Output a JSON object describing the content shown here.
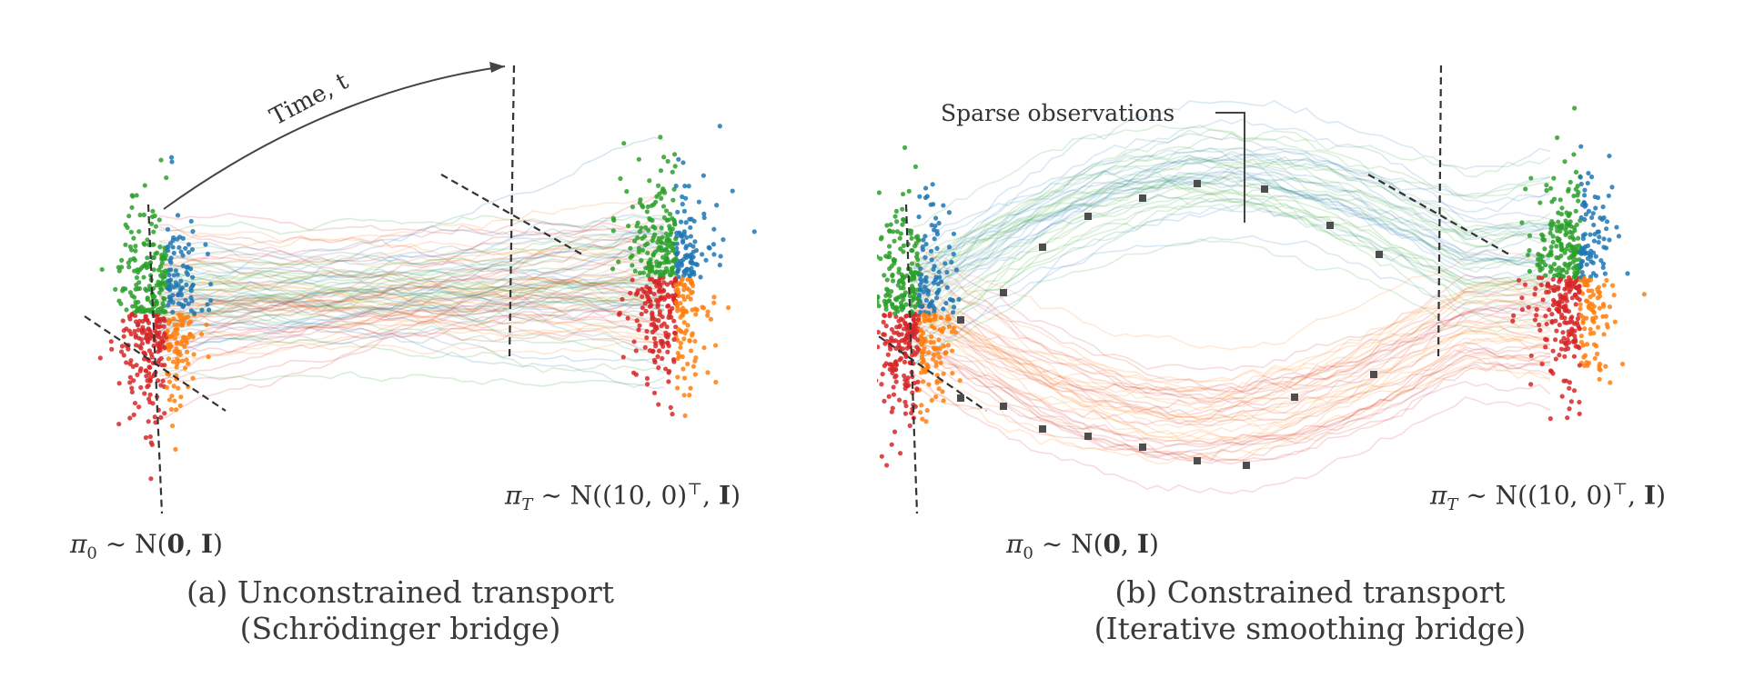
{
  "panels": [
    {
      "id": "a",
      "caption_line1": "(a) Unconstrained transport",
      "caption_line2": "(Schrödinger bridge)",
      "source_label": {
        "symbol": "π",
        "sub": "0",
        "rel": " ∼ N(",
        "bold": "0",
        "sep": ", ",
        "bold2": "I",
        "end": ")"
      },
      "target_label": {
        "symbol": "π",
        "sub": "T",
        "rel": " ∼ N((10, 0)",
        "sup": "⊤",
        "sep": ", ",
        "bold2": "I",
        "end": ")"
      },
      "time_label": "Time, t"
    },
    {
      "id": "b",
      "caption_line1": "(b) Constrained transport",
      "caption_line2": "(Iterative smoothing bridge)",
      "source_label": {
        "symbol": "π",
        "sub": "0",
        "rel": " ∼ N(",
        "bold": "0",
        "sep": ", ",
        "bold2": "I",
        "end": ")"
      },
      "target_label": {
        "symbol": "π",
        "sub": "T",
        "rel": " ∼ N((10, 0)",
        "sup": "⊤",
        "sep": ", ",
        "bold2": "I",
        "end": ")"
      },
      "annotation": "Sparse observations"
    }
  ],
  "colors": {
    "green": "#2ca02c",
    "blue": "#1f77b4",
    "red": "#d62728",
    "orange": "#ff7f0e",
    "observation": "#4d4d4d",
    "dashed": "#333333"
  }
}
